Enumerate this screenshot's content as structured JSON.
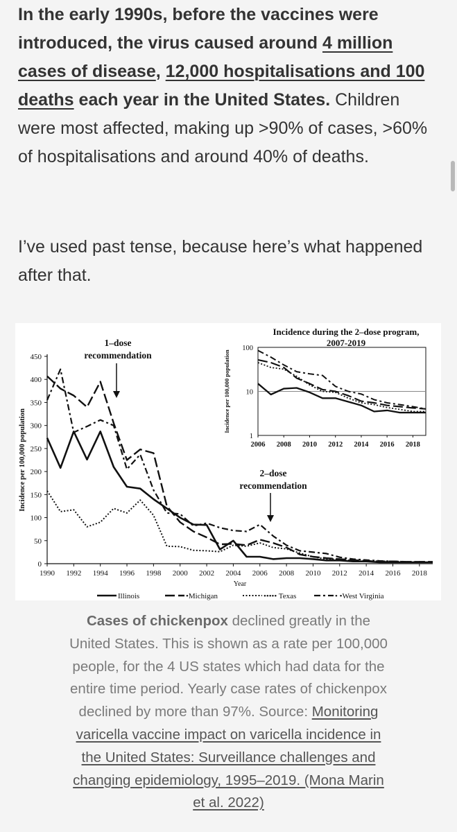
{
  "article": {
    "p1": {
      "bold_start": "In the early 1990s, before the vaccines were introduced, the virus caused around ",
      "link1": "4 million cases of disease",
      "sep": ", ",
      "link2": "12,000 hospitalisations and 100 deaths",
      "bold_end": " each year in the United States.",
      "rest": " Children were most affected, making up >90% of cases, >60% of hospitalisations and around 40% of deaths."
    },
    "p2": "I’ve used past tense, because here’s what happened after that."
  },
  "figure": {
    "annot1_line1": "1–dose",
    "annot1_line2": "recommendation",
    "annot2_line1": "2–dose",
    "annot2_line2": "recommendation",
    "inset_title_line1": "Incidence during the 2–dose program,",
    "inset_title_line2": "2007-2019"
  },
  "chart_data": [
    {
      "type": "line",
      "title": "",
      "xlabel": "Year",
      "ylabel": "Incidence per 100,000 population",
      "xlim": [
        1990,
        2019
      ],
      "ylim": [
        0,
        450
      ],
      "xticks": [
        "1990",
        "1992",
        "1994",
        "1996",
        "1998",
        "2000",
        "2002",
        "2004",
        "2006",
        "2008",
        "2010",
        "2012",
        "2014",
        "2016",
        "2018"
      ],
      "yticks": [
        "0",
        "50",
        "100",
        "150",
        "200",
        "250",
        "300",
        "350",
        "400",
        "450"
      ],
      "x": [
        1990,
        1991,
        1992,
        1993,
        1994,
        1995,
        1996,
        1997,
        1998,
        1999,
        2000,
        2001,
        2002,
        2003,
        2004,
        2005,
        2006,
        2007,
        2008,
        2009,
        2010,
        2011,
        2012,
        2013,
        2014,
        2015,
        2016,
        2017,
        2018,
        2019
      ],
      "series": [
        {
          "name": "Illinois",
          "values": [
            273,
            208,
            287,
            226,
            287,
            210,
            167,
            163,
            140,
            120,
            100,
            85,
            84,
            31,
            50,
            15,
            15,
            10,
            12,
            12,
            10,
            7,
            7,
            5,
            5,
            3,
            3,
            3,
            3,
            3
          ]
        },
        {
          "name": "•Michigan",
          "values": [
            407,
            380,
            365,
            340,
            395,
            305,
            225,
            248,
            240,
            125,
            90,
            70,
            57,
            42,
            43,
            40,
            52,
            45,
            35,
            20,
            15,
            12,
            10,
            8,
            6,
            5,
            5,
            4,
            4,
            4
          ]
        },
        {
          "name": "••••• Texas",
          "values": [
            158,
            113,
            117,
            80,
            90,
            120,
            110,
            138,
            105,
            38,
            37,
            29,
            28,
            26,
            40,
            38,
            45,
            35,
            32,
            23,
            15,
            10,
            10,
            6,
            5,
            4,
            4,
            4,
            3,
            3
          ]
        },
        {
          "name": "• •West Virginia",
          "values": [
            355,
            422,
            285,
            298,
            312,
            300,
            205,
            237,
            160,
            110,
            108,
            82,
            88,
            78,
            72,
            70,
            85,
            60,
            40,
            28,
            25,
            22,
            14,
            10,
            8,
            6,
            5,
            4,
            4,
            4
          ]
        }
      ],
      "legend": "bottom"
    },
    {
      "type": "line",
      "title": "Incidence during the 2–dose program, 2007-2019",
      "xlabel": "",
      "ylabel": "Incidence per 100,000 population",
      "yscale": "log",
      "xlim": [
        2006,
        2019
      ],
      "ylim": [
        1,
        100
      ],
      "xticks": [
        "2006",
        "2008",
        "2010",
        "2012",
        "2014",
        "2016",
        "2018"
      ],
      "yticks": [
        "1",
        "10",
        "100"
      ],
      "x": [
        2006,
        2007,
        2008,
        2009,
        2010,
        2011,
        2012,
        2013,
        2014,
        2015,
        2016,
        2017,
        2018,
        2019
      ],
      "series": [
        {
          "name": "Illinois",
          "values": [
            15,
            8.5,
            11.5,
            12,
            9.5,
            7,
            7,
            5.8,
            4.8,
            3.5,
            3.7,
            3.3,
            3.3,
            3.3
          ]
        },
        {
          "name": "Michigan",
          "values": [
            52,
            45,
            35,
            20,
            15,
            11,
            10,
            8,
            6,
            5.5,
            4.8,
            4.5,
            4.2,
            4
          ]
        },
        {
          "name": "Texas",
          "values": [
            45,
            35,
            32,
            22,
            14,
            10,
            9.5,
            7,
            5.5,
            5,
            4.3,
            3.9,
            3.5,
            3.5
          ]
        },
        {
          "name": "West Virginia",
          "values": [
            85,
            60,
            40,
            28,
            25,
            23,
            13,
            10,
            8.7,
            6.5,
            5.5,
            5,
            4.5,
            4
          ]
        }
      ]
    }
  ],
  "caption": {
    "bold": "Cases of chickenpox",
    "text": " declined greatly in the United States. This is shown as a rate per 100,000 people, for the 4 US states which had data for the entire time period. Yearly case rates of chickenpox declined by more than 97%. Source: ",
    "link": "Monitoring varicella vaccine impact on varicella incidence in the United States: Surveillance challenges and changing epidemiology, 1995–2019. (Mona Marin et al. 2022)"
  }
}
